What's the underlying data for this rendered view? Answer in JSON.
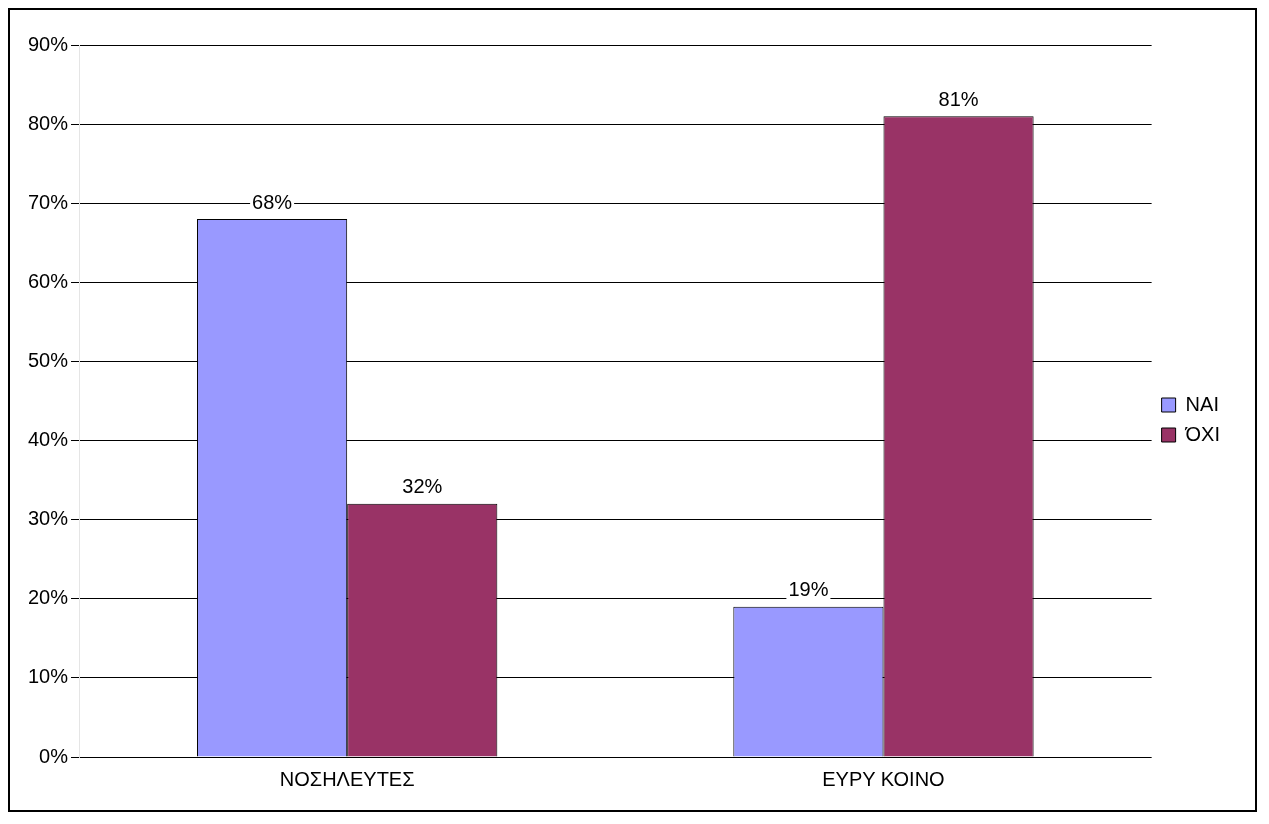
{
  "chart_data": {
    "type": "bar",
    "categories": [
      "ΝΟΣΗΛΕΥΤΕΣ",
      "ΕΥΡΥ ΚΟΙΝΟ"
    ],
    "series": [
      {
        "name": "ΝΑΙ",
        "color": "#9999ff",
        "values": [
          68,
          19
        ],
        "value_labels": [
          "68%",
          "19%"
        ]
      },
      {
        "name": "ΌΧΙ",
        "color": "#993366",
        "values": [
          32,
          81
        ],
        "value_labels": [
          "32%",
          "81%"
        ]
      }
    ],
    "ylim": [
      0,
      90
    ],
    "yticks": [
      {
        "value": 0,
        "label": "0%"
      },
      {
        "value": 10,
        "label": "10%"
      },
      {
        "value": 20,
        "label": "20%"
      },
      {
        "value": 30,
        "label": "30%"
      },
      {
        "value": 40,
        "label": "40%"
      },
      {
        "value": 50,
        "label": "50%"
      },
      {
        "value": 60,
        "label": "60%"
      },
      {
        "value": 70,
        "label": "70%"
      },
      {
        "value": 80,
        "label": "80%"
      },
      {
        "value": 90,
        "label": "90%"
      }
    ],
    "grid": "y",
    "legend": "right"
  }
}
